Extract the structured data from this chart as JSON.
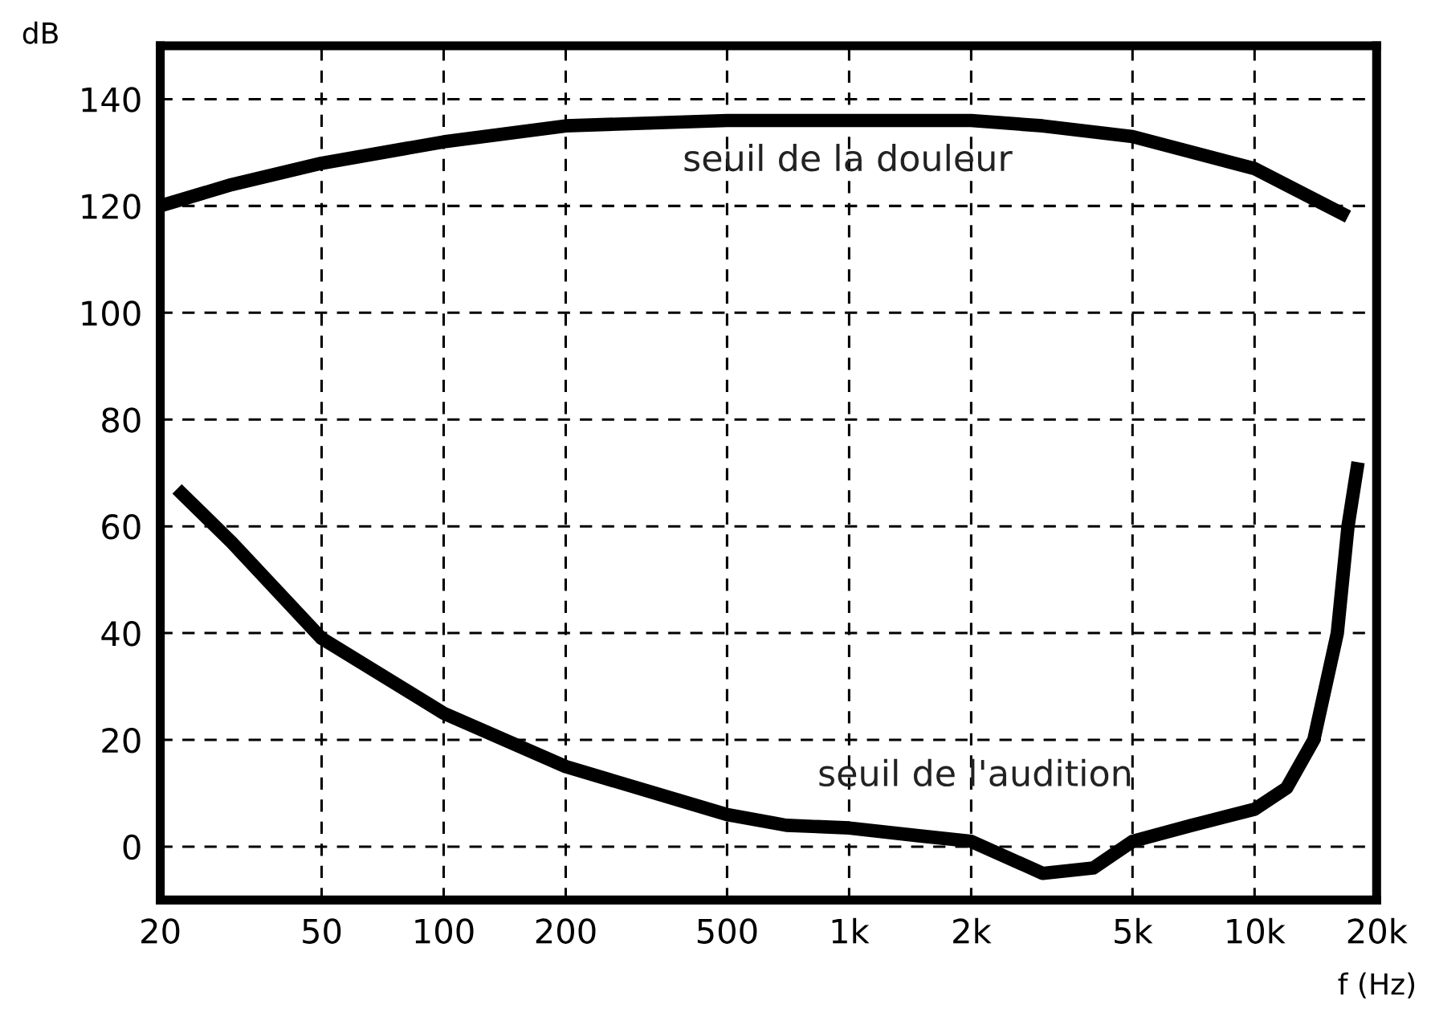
{
  "chart_data": {
    "type": "line",
    "xlabel": "f (Hz)",
    "ylabel": "dB",
    "log": "x",
    "xlim": [
      20,
      20000
    ],
    "ylim": [
      -10,
      150
    ],
    "xticks": [
      20,
      50,
      100,
      200,
      500,
      {
        "value": 1000,
        "label": "1k"
      },
      {
        "value": 2000,
        "label": "2k"
      },
      {
        "value": 5000,
        "label": "5k"
      },
      {
        "value": 10000,
        "label": "10k"
      },
      {
        "value": 20000,
        "label": "20k"
      }
    ],
    "yticks": [
      0,
      20,
      40,
      60,
      80,
      100,
      120,
      140
    ],
    "grid": true,
    "line_style": "solid",
    "marker": "none",
    "series": [
      {
        "color": "#000000",
        "x": [
          20,
          30,
          50,
          100,
          200,
          500,
          1000,
          2000,
          3000,
          5000,
          10000,
          17000
        ],
        "values": [
          120,
          124,
          128,
          132,
          135,
          136,
          136,
          136,
          135,
          133,
          127,
          118
        ]
      },
      {
        "color": "#000000",
        "x": [
          22,
          30,
          50,
          100,
          200,
          500,
          700,
          1000,
          1500,
          2000,
          3000,
          4000,
          5000,
          7000,
          10000,
          12000,
          14000,
          16000,
          17000,
          18000
        ],
        "values": [
          67,
          57,
          39,
          25,
          15,
          6,
          4,
          3.5,
          2,
          1,
          -5,
          -4,
          1,
          4,
          7,
          11,
          20,
          40,
          60,
          72
        ]
      }
    ],
    "annotations": [
      "seuil de la douleur",
      "seuil de l'audition"
    ]
  }
}
